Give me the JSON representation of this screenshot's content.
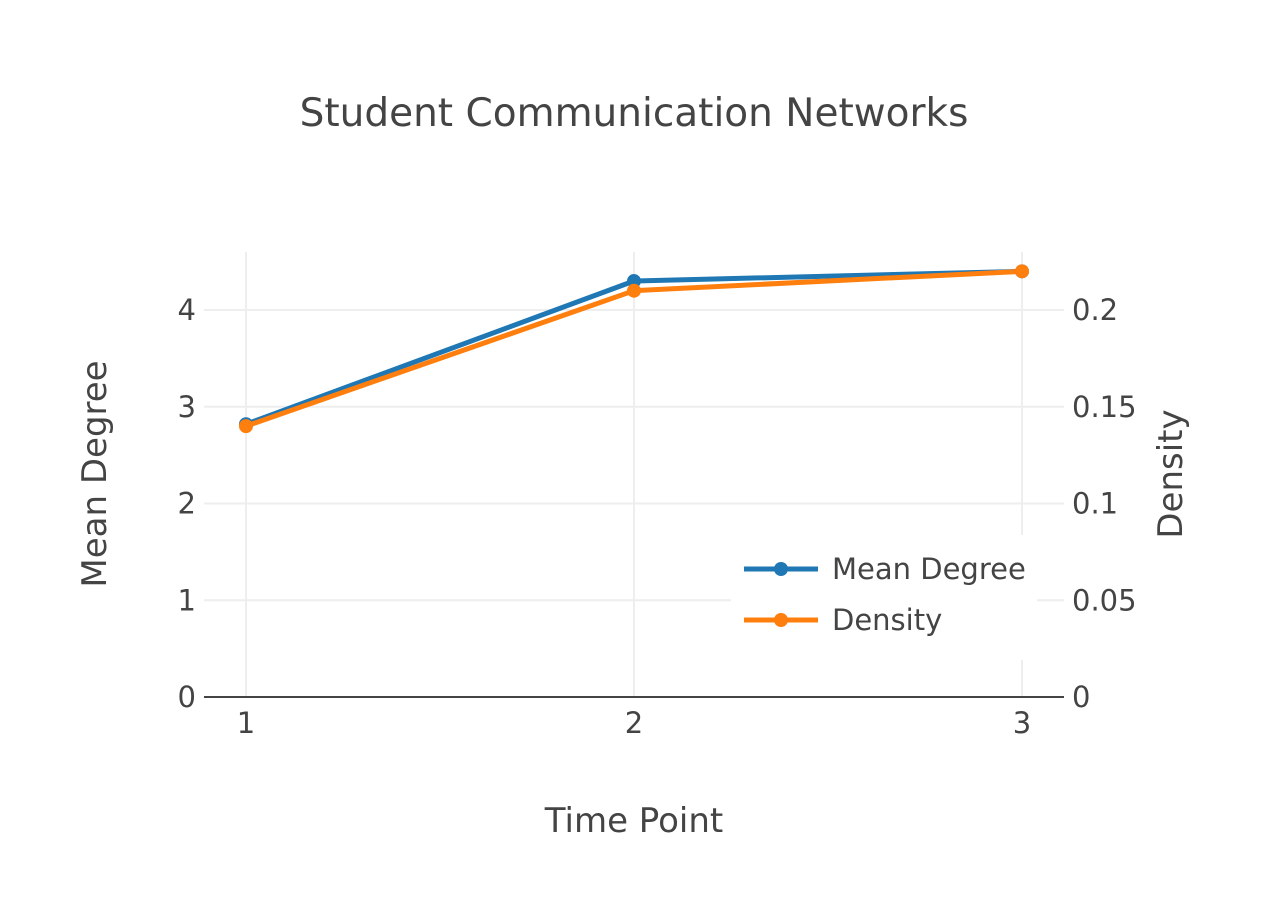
{
  "chart_data": {
    "type": "line",
    "title": "Student Communication Networks",
    "xlabel": "Time Point",
    "ylabel": "Mean Degree",
    "y2label": "Density",
    "x": [
      1,
      2,
      3
    ],
    "x_ticks": [
      "1",
      "2",
      "3"
    ],
    "y_ticks": [
      "0",
      "1",
      "2",
      "3",
      "4"
    ],
    "y2_ticks": [
      "0",
      "0.05",
      "0.1",
      "0.15",
      "0.2"
    ],
    "ylim": [
      0,
      4.6
    ],
    "y2lim": [
      0,
      0.23
    ],
    "grid": true,
    "legend_position": "bottom-right",
    "series": [
      {
        "name": "Mean Degree",
        "axis": "left",
        "values": [
          2.82,
          4.3,
          4.4
        ],
        "color": "#1f77b4"
      },
      {
        "name": "Density",
        "axis": "right",
        "values": [
          0.14,
          0.21,
          0.22
        ],
        "color": "#ff7f0e"
      }
    ]
  }
}
